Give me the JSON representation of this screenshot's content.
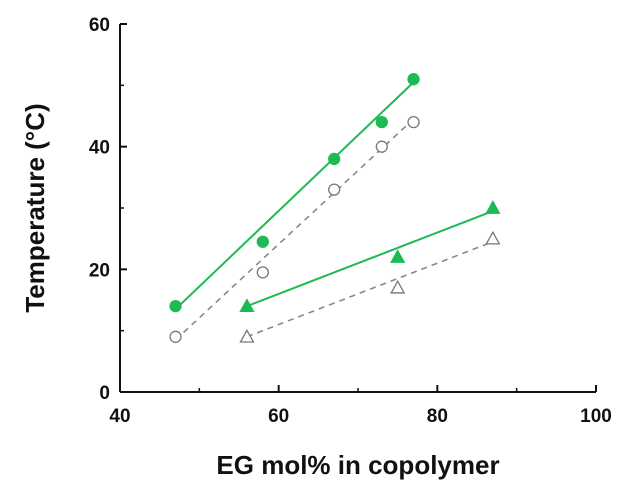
{
  "chart_data": {
    "type": "scatter",
    "xlabel": "EG mol% in copolymer",
    "ylabel": "Temperature (°C)",
    "xlim": [
      40,
      100
    ],
    "ylim": [
      0,
      60
    ],
    "x_ticks": [
      "40",
      "60",
      "80",
      "100"
    ],
    "y_ticks": [
      "0",
      "20",
      "40",
      "60"
    ],
    "grid": false,
    "legend": false,
    "series": [
      {
        "marker": "circle",
        "filled": true,
        "color": "#1db954",
        "fit_line": "solid",
        "points": [
          [
            47,
            14
          ],
          [
            58,
            24.5
          ],
          [
            67,
            38
          ],
          [
            73,
            44
          ],
          [
            77,
            51
          ]
        ],
        "fit": [
          [
            47,
            13.5
          ],
          [
            77,
            50.5
          ]
        ]
      },
      {
        "marker": "circle",
        "filled": false,
        "color": "#888888",
        "fit_line": "dashed",
        "points": [
          [
            47,
            9
          ],
          [
            58,
            19.5
          ],
          [
            67,
            33
          ],
          [
            73,
            40
          ],
          [
            77,
            44
          ]
        ],
        "fit": [
          [
            47,
            8.5
          ],
          [
            77,
            44.5
          ]
        ]
      },
      {
        "marker": "triangle",
        "filled": true,
        "color": "#1db954",
        "fit_line": "solid",
        "points": [
          [
            56,
            14
          ],
          [
            75,
            22
          ],
          [
            87,
            30
          ]
        ],
        "fit": [
          [
            56,
            14
          ],
          [
            87,
            29.5
          ]
        ]
      },
      {
        "marker": "triangle",
        "filled": false,
        "color": "#888888",
        "fit_line": "dashed",
        "points": [
          [
            56,
            9
          ],
          [
            75,
            17
          ],
          [
            87,
            25
          ]
        ],
        "fit": [
          [
            56,
            9
          ],
          [
            87,
            24.5
          ]
        ]
      }
    ]
  }
}
